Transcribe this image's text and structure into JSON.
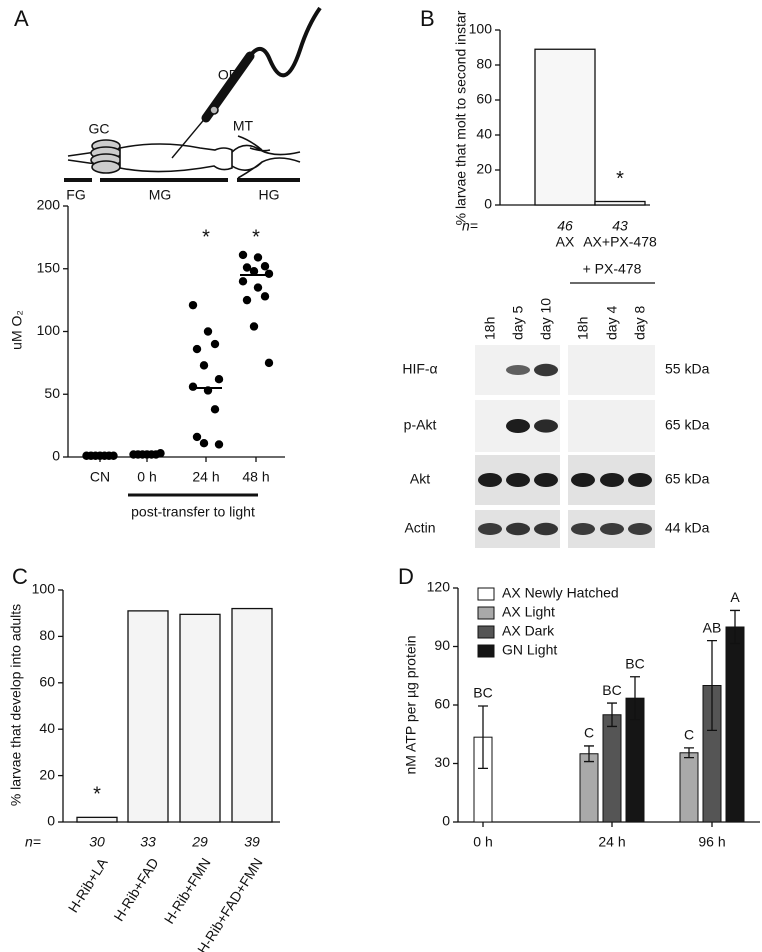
{
  "chart_data": [
    {
      "type": "strip",
      "panel": "A",
      "ylabel": "uM O₂",
      "categories": [
        "CN",
        "0 h",
        "24 h",
        "48 h"
      ],
      "values": [
        [
          1,
          1,
          1,
          1,
          1,
          1,
          1
        ],
        [
          2,
          2,
          2,
          2,
          2,
          2,
          3
        ],
        [
          121,
          100,
          90,
          86,
          73,
          62,
          56,
          53,
          38,
          16,
          11,
          10
        ],
        [
          161,
          159,
          152,
          151,
          148,
          146,
          140,
          135,
          128,
          125,
          104,
          75
        ]
      ],
      "medians": [
        1,
        1,
        55,
        145
      ],
      "annotations": [
        null,
        null,
        "*",
        "*"
      ],
      "bracket_label": "post-transfer to light",
      "color": "#000000",
      "ylim": [
        0,
        200
      ],
      "yticks": [
        0,
        50,
        100,
        150,
        200
      ]
    },
    {
      "type": "bar",
      "panel": "B",
      "ylabel": "% larvae that molt to second instar",
      "categories": [
        "AX",
        "AX+PX-478"
      ],
      "values": [
        89,
        2
      ],
      "n_label": "n=",
      "n": [
        46,
        43
      ],
      "annotations": [
        null,
        "*"
      ],
      "color": "#f7f7f7",
      "ylim": [
        0,
        100
      ],
      "yticks": [
        0,
        20,
        40,
        60,
        80,
        100
      ]
    },
    {
      "type": "bar",
      "panel": "C",
      "ylabel": "% larvae that develop into adults",
      "categories": [
        "H-Rib+LA",
        "H-Rib+FAD",
        "H-Rib+FMN",
        "H-Rib+FAD+FMN"
      ],
      "values": [
        2,
        91,
        89.5,
        92
      ],
      "n_label": "n=",
      "n": [
        30,
        33,
        29,
        39
      ],
      "annotations": [
        "*",
        null,
        null,
        null
      ],
      "color": "#f4f4f4",
      "ylim": [
        0,
        100
      ],
      "yticks": [
        0,
        20,
        40,
        60,
        80,
        100
      ]
    },
    {
      "type": "grouped-bar",
      "panel": "D",
      "ylabel": "nM ATP per µg protein",
      "categories": [
        "0 h",
        "24 h",
        "96 h"
      ],
      "series": [
        {
          "name": "AX Newly Hatched",
          "color": "#ffffff",
          "values": [
            43.5,
            null,
            null
          ],
          "errors": [
            16,
            null,
            null
          ],
          "letters": [
            "BC",
            null,
            null
          ]
        },
        {
          "name": "AX Light",
          "color": "#a9a9a9",
          "values": [
            null,
            35,
            35.5
          ],
          "errors": [
            null,
            4,
            2.5
          ],
          "letters": [
            null,
            "C",
            "C"
          ]
        },
        {
          "name": "AX Dark",
          "color": "#555555",
          "values": [
            null,
            55,
            70
          ],
          "errors": [
            null,
            6,
            23
          ],
          "letters": [
            null,
            "BC",
            "AB"
          ]
        },
        {
          "name": "GN Light",
          "color": "#151515",
          "values": [
            null,
            63.5,
            100
          ],
          "errors": [
            null,
            11,
            8.5
          ],
          "letters": [
            null,
            "BC",
            "A"
          ]
        }
      ],
      "legend": "top-left",
      "ylim": [
        0,
        120
      ],
      "yticks": [
        0,
        30,
        60,
        90,
        120
      ]
    }
  ],
  "diagram": {
    "labels": [
      "GC",
      "OP",
      "MT",
      "FG",
      "MG",
      "HG"
    ]
  },
  "blot": {
    "treatment": "+ PX-478",
    "lanes": [
      "18h",
      "day 5",
      "day 10",
      "18h",
      "day 4",
      "day 8"
    ],
    "rows": [
      {
        "name": "HIF-α",
        "size": "55 kDa"
      },
      {
        "name": "p-Akt",
        "size": "65 kDa"
      },
      {
        "name": "Akt",
        "size": "65 kDa"
      },
      {
        "name": "Actin",
        "size": "44 kDa"
      }
    ]
  }
}
